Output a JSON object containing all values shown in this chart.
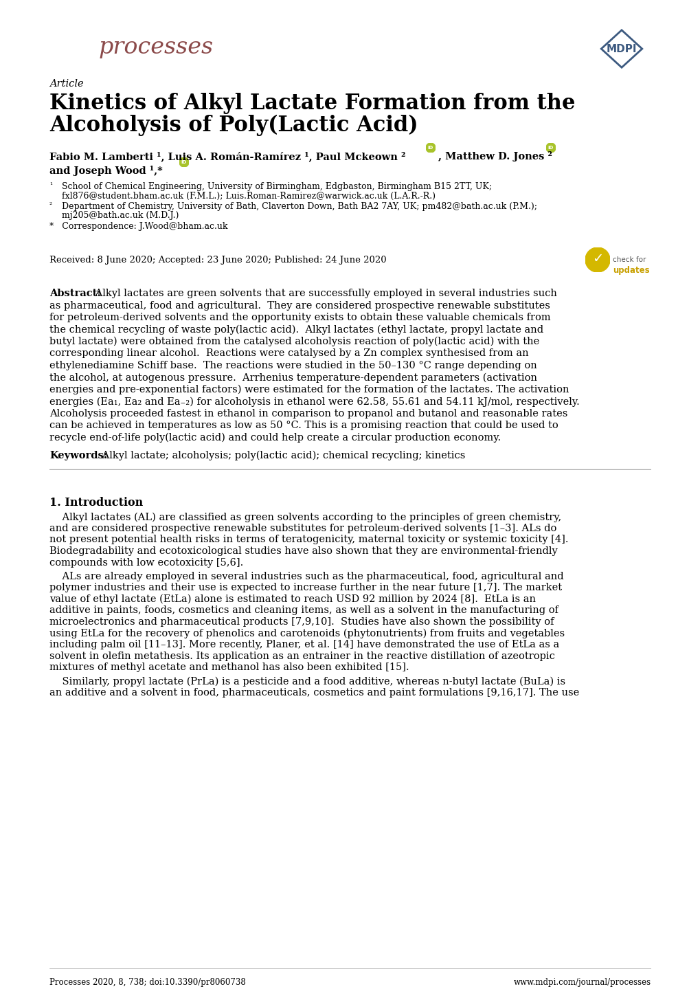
{
  "bg_color": "#ffffff",
  "text_color": "#000000",
  "journal_name": "processes",
  "journal_color": "#8B4A4A",
  "article_type": "Article",
  "title_line1": "Kinetics of Alkyl Lactate Formation from the",
  "title_line2": "Alcoholysis of Poly(Lactic Acid)",
  "received": "Received: 8 June 2020; Accepted: 23 June 2020; Published: 24 June 2020",
  "abstract_label": "Abstract:",
  "abstract_text": " Alkyl lactates are green solvents that are successfully employed in several industries such as pharmaceutical, food and agricultural.  They are considered prospective renewable substitutes for petroleum-derived solvents and the opportunity exists to obtain these valuable chemicals from the chemical recycling of waste poly(lactic acid).  Alkyl lactates (ethyl lactate, propyl lactate and butyl lactate) were obtained from the catalysed alcoholysis reaction of poly(lactic acid) with the corresponding linear alcohol.  Reactions were catalysed by a Zn complex synthesised from an ethylenediamine Schiff base.  The reactions were studied in the 50–130 °C range depending on the alcohol, at autogenous pressure.  Arrhenius temperature-dependent parameters (activation energies and pre-exponential factors) were estimated for the formation of the lactates. The activation energies (Ea₁, Ea₂ and Ea₋₂) for alcoholysis in ethanol were 62.58, 55.61 and 54.11 kJ/mol, respectively.  Alcoholysis proceeded fastest in ethanol in comparison to propanol and butanol and reasonable rates can be achieved in temperatures as low as 50 °C. This is a promising reaction that could be used to recycle end-of-life poly(lactic acid) and could help create a circular production economy.",
  "keywords_label": "Keywords:",
  "keywords_text": " Alkyl lactate; alcoholysis; poly(lactic acid); chemical recycling; kinetics",
  "separator_color": "#aaaaaa",
  "intro_heading": "1. Introduction",
  "intro_para1": "Alkyl lactates (AL) are classified as green solvents according to the principles of green chemistry, and are considered prospective renewable substitutes for petroleum-derived solvents [1–3]. ALs do not present potential health risks in terms of teratogenicity, maternal toxicity or systemic toxicity [4]. Biodegradability and ecotoxicological studies have also shown that they are environmental-friendly compounds with low ecotoxicity [5,6].",
  "intro_para2": "ALs are already employed in several industries such as the pharmaceutical, food, agricultural and polymer industries and their use is expected to increase further in the near future [1,7]. The market value of ethyl lactate (EtLa) alone is estimated to reach USD 92 million by 2024 [8].  EtLa is an additive in paints, foods, cosmetics and cleaning items, as well as a solvent in the manufacturing of microelectronics and pharmaceutical products [7,9,10].  Studies have also shown the possibility of using EtLa for the recovery of phenolics and carotenoids (phytonutrients) from fruits and vegetables including palm oil [11–13]. More recently, Planer, et al. [14] have demonstrated the use of EtLa as a solvent in olefin metathesis. Its application as an entrainer in the reactive distillation of azeotropic mixtures of methyl acetate and methanol has also been exhibited [15].",
  "intro_para3": "Similarly, propyl lactate (PrLa) is a pesticide and a food additive, whereas n-butyl lactate (BuLa) is an additive and a solvent in food, pharmaceuticals, cosmetics and paint formulations [9,16,17]. The use",
  "footer_left": "Processes 2020, 8, 738; doi:10.3390/pr8060738",
  "footer_right": "www.mdpi.com/journal/processes",
  "link_color": "#1a6faf",
  "orcid_color": "#a8c32a",
  "mdpi_color": "#3d5a80",
  "check_yellow": "#d4a017",
  "check_bg": "#d4a800"
}
